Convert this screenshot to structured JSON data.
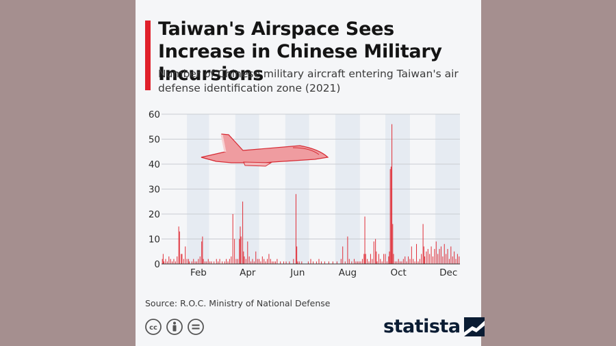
{
  "header": {
    "title": "Taiwan's Airspace Sees Increase in Chinese Military Incursions",
    "subtitle": "Number of Chinese military aircraft entering Taiwan's air defense identification zone (2021)"
  },
  "footer": {
    "source": "Source: R.O.C. Ministry of National Defense",
    "brand": "statista"
  },
  "colors": {
    "accent": "#e0202b",
    "bar": "#e0303a",
    "band": "#e6ebf2",
    "background": "#f5f6f8",
    "brand": "#0a1c33"
  },
  "icons": [
    "cc-icon",
    "attribution-icon",
    "no-derivatives-icon",
    "statista-logo-icon",
    "fighter-jet-icon"
  ],
  "chart_data": {
    "type": "bar",
    "title": "Taiwan's Airspace Sees Increase in Chinese Military Incursions",
    "subtitle": "Number of Chinese military aircraft entering Taiwan's air defense identification zone (2021)",
    "xlabel": "",
    "ylabel": "",
    "x_unit": "day of 2021",
    "ylim": [
      0,
      60
    ],
    "y_ticks": [
      0,
      10,
      20,
      30,
      40,
      50,
      60
    ],
    "x_range": [
      1,
      365
    ],
    "x_ticks": [
      {
        "label": "Feb",
        "day": 46
      },
      {
        "label": "Apr",
        "day": 106
      },
      {
        "label": "Jun",
        "day": 167
      },
      {
        "label": "Aug",
        "day": 228
      },
      {
        "label": "Oct",
        "day": 290
      },
      {
        "label": "Dec",
        "day": 351
      }
    ],
    "shaded_months": [
      [
        32,
        59
      ],
      [
        91,
        120
      ],
      [
        152,
        181
      ],
      [
        213,
        243
      ],
      [
        274,
        304
      ],
      [
        335,
        365
      ]
    ],
    "grid": true,
    "legend": "none",
    "points": [
      [
        2,
        2
      ],
      [
        3,
        4
      ],
      [
        4,
        1
      ],
      [
        6,
        2
      ],
      [
        8,
        1
      ],
      [
        10,
        3
      ],
      [
        12,
        2
      ],
      [
        14,
        1
      ],
      [
        16,
        2
      ],
      [
        18,
        1
      ],
      [
        20,
        3
      ],
      [
        22,
        15
      ],
      [
        23,
        13
      ],
      [
        25,
        4
      ],
      [
        26,
        4
      ],
      [
        28,
        2
      ],
      [
        30,
        7
      ],
      [
        32,
        2
      ],
      [
        34,
        2
      ],
      [
        35,
        1
      ],
      [
        38,
        1
      ],
      [
        40,
        2
      ],
      [
        42,
        1
      ],
      [
        44,
        1
      ],
      [
        46,
        2
      ],
      [
        48,
        3
      ],
      [
        50,
        9
      ],
      [
        51,
        11
      ],
      [
        52,
        2
      ],
      [
        54,
        1
      ],
      [
        56,
        1
      ],
      [
        58,
        2
      ],
      [
        60,
        1
      ],
      [
        62,
        1
      ],
      [
        65,
        1
      ],
      [
        68,
        2
      ],
      [
        70,
        1
      ],
      [
        72,
        2
      ],
      [
        75,
        1
      ],
      [
        78,
        1
      ],
      [
        80,
        2
      ],
      [
        82,
        1
      ],
      [
        84,
        2
      ],
      [
        86,
        3
      ],
      [
        88,
        20
      ],
      [
        90,
        10
      ],
      [
        92,
        2
      ],
      [
        94,
        2
      ],
      [
        96,
        10
      ],
      [
        97,
        15
      ],
      [
        98,
        11
      ],
      [
        100,
        25
      ],
      [
        101,
        5
      ],
      [
        102,
        3
      ],
      [
        104,
        2
      ],
      [
        106,
        9
      ],
      [
        108,
        3
      ],
      [
        110,
        1
      ],
      [
        112,
        2
      ],
      [
        114,
        1
      ],
      [
        116,
        5
      ],
      [
        118,
        2
      ],
      [
        120,
        2
      ],
      [
        122,
        1
      ],
      [
        124,
        3
      ],
      [
        126,
        2
      ],
      [
        128,
        1
      ],
      [
        130,
        2
      ],
      [
        132,
        4
      ],
      [
        134,
        2
      ],
      [
        136,
        1
      ],
      [
        138,
        1
      ],
      [
        140,
        1
      ],
      [
        142,
        2
      ],
      [
        146,
        1
      ],
      [
        150,
        1
      ],
      [
        153,
        1
      ],
      [
        157,
        1
      ],
      [
        162,
        2
      ],
      [
        165,
        28
      ],
      [
        166,
        7
      ],
      [
        167,
        1
      ],
      [
        169,
        1
      ],
      [
        172,
        1
      ],
      [
        180,
        1
      ],
      [
        183,
        2
      ],
      [
        186,
        1
      ],
      [
        190,
        1
      ],
      [
        193,
        2
      ],
      [
        196,
        1
      ],
      [
        200,
        1
      ],
      [
        205,
        1
      ],
      [
        210,
        1
      ],
      [
        215,
        1
      ],
      [
        220,
        2
      ],
      [
        222,
        7
      ],
      [
        225,
        1
      ],
      [
        228,
        11
      ],
      [
        230,
        2
      ],
      [
        233,
        1
      ],
      [
        236,
        2
      ],
      [
        238,
        1
      ],
      [
        240,
        1
      ],
      [
        242,
        1
      ],
      [
        244,
        1
      ],
      [
        246,
        2
      ],
      [
        248,
        4
      ],
      [
        249,
        19
      ],
      [
        250,
        4
      ],
      [
        252,
        2
      ],
      [
        254,
        1
      ],
      [
        256,
        4
      ],
      [
        258,
        2
      ],
      [
        260,
        9
      ],
      [
        262,
        10
      ],
      [
        263,
        5
      ],
      [
        264,
        1
      ],
      [
        266,
        4
      ],
      [
        268,
        2
      ],
      [
        270,
        1
      ],
      [
        272,
        4
      ],
      [
        274,
        4
      ],
      [
        276,
        1
      ],
      [
        278,
        3
      ],
      [
        279,
        5
      ],
      [
        280,
        38
      ],
      [
        281,
        39
      ],
      [
        282,
        56
      ],
      [
        283,
        16
      ],
      [
        284,
        4
      ],
      [
        286,
        1
      ],
      [
        288,
        1
      ],
      [
        290,
        2
      ],
      [
        292,
        1
      ],
      [
        294,
        1
      ],
      [
        296,
        2
      ],
      [
        298,
        3
      ],
      [
        300,
        1
      ],
      [
        302,
        3
      ],
      [
        304,
        2
      ],
      [
        306,
        7
      ],
      [
        308,
        2
      ],
      [
        310,
        1
      ],
      [
        312,
        8
      ],
      [
        314,
        1
      ],
      [
        316,
        2
      ],
      [
        318,
        4
      ],
      [
        320,
        16
      ],
      [
        321,
        7
      ],
      [
        322,
        3
      ],
      [
        324,
        5
      ],
      [
        326,
        6
      ],
      [
        328,
        4
      ],
      [
        330,
        7
      ],
      [
        332,
        3
      ],
      [
        334,
        6
      ],
      [
        336,
        9
      ],
      [
        338,
        4
      ],
      [
        340,
        6
      ],
      [
        342,
        7
      ],
      [
        344,
        3
      ],
      [
        346,
        8
      ],
      [
        348,
        4
      ],
      [
        350,
        6
      ],
      [
        352,
        2
      ],
      [
        354,
        7
      ],
      [
        356,
        3
      ],
      [
        358,
        5
      ],
      [
        360,
        2
      ],
      [
        362,
        4
      ],
      [
        364,
        3
      ]
    ]
  }
}
